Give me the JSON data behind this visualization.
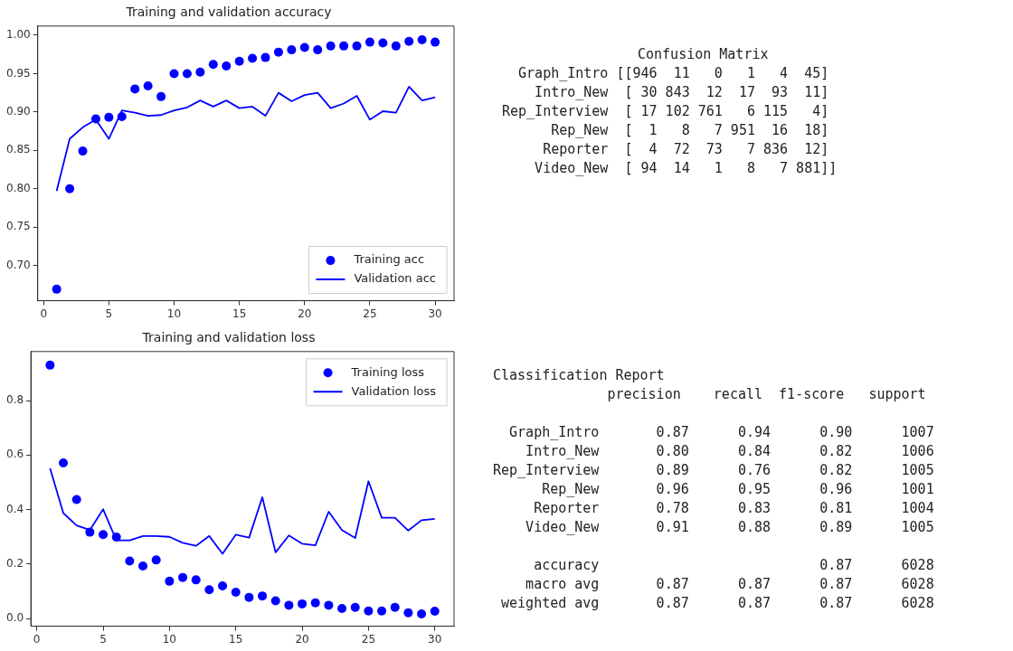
{
  "chart_data": [
    {
      "type": "scatter",
      "title": "Training and validation accuracy",
      "x": [
        1,
        2,
        3,
        4,
        5,
        6,
        7,
        8,
        9,
        10,
        11,
        12,
        13,
        14,
        15,
        16,
        17,
        18,
        19,
        20,
        21,
        22,
        23,
        24,
        25,
        26,
        27,
        28,
        29,
        30
      ],
      "xlim": [
        -0.45,
        31.45
      ],
      "xticks": [
        0,
        5,
        10,
        15,
        20,
        25,
        30
      ],
      "ylim": [
        0.654,
        1.012
      ],
      "yticks": [
        {
          "value": 0.7,
          "label": "0.70"
        },
        {
          "value": 0.75,
          "label": "0.75"
        },
        {
          "value": 0.8,
          "label": "0.80"
        },
        {
          "value": 0.85,
          "label": "0.85"
        },
        {
          "value": 0.9,
          "label": "0.90"
        },
        {
          "value": 0.95,
          "label": "0.95"
        },
        {
          "value": 1.0,
          "label": "1.00"
        }
      ],
      "grid": false,
      "legend": "bottom right",
      "series": [
        {
          "name": "Training acc",
          "type": "scatter",
          "marker": "circle",
          "color": "#0000ff",
          "values": [
            0.669,
            0.8,
            0.849,
            0.891,
            0.893,
            0.894,
            0.93,
            0.934,
            0.92,
            0.95,
            0.95,
            0.952,
            0.962,
            0.96,
            0.966,
            0.97,
            0.971,
            0.978,
            0.981,
            0.984,
            0.981,
            0.986,
            0.986,
            0.986,
            0.991,
            0.99,
            0.986,
            0.992,
            0.994,
            0.991
          ]
        },
        {
          "name": "Validation acc",
          "type": "line",
          "marker": "none",
          "color": "#0000ff",
          "values": [
            0.797,
            0.865,
            0.88,
            0.89,
            0.865,
            0.902,
            0.899,
            0.895,
            0.896,
            0.902,
            0.906,
            0.915,
            0.907,
            0.915,
            0.905,
            0.907,
            0.895,
            0.925,
            0.914,
            0.922,
            0.925,
            0.905,
            0.911,
            0.921,
            0.89,
            0.901,
            0.899,
            0.933,
            0.915,
            0.919
          ]
        }
      ]
    },
    {
      "type": "other",
      "title": "Confusion Matrix",
      "annotations": [
        "  Graph_Intro [[946  11   0   1   4  45]",
        "    Intro_New  [ 30 843  12  17  93  11]",
        "Rep_Interview  [ 17 102 761   6 115   4]",
        "      Rep_New  [  1   8   7 951  16  18]",
        "     Reporter  [  4  72  73   7 836  12]",
        "    Video_New  [ 94  14   1   8   7 881]]"
      ]
    },
    {
      "type": "scatter",
      "title": "Training and validation loss",
      "x": [
        1,
        2,
        3,
        4,
        5,
        6,
        7,
        8,
        9,
        10,
        11,
        12,
        13,
        14,
        15,
        16,
        17,
        18,
        19,
        20,
        21,
        22,
        23,
        24,
        25,
        26,
        27,
        28,
        29,
        30
      ],
      "xlim": [
        -0.45,
        31.45
      ],
      "xticks": [
        0,
        5,
        10,
        15,
        20,
        25,
        30
      ],
      "ylim": [
        -0.028,
        0.98
      ],
      "yticks": [
        {
          "value": 0,
          "label": "0.0"
        },
        {
          "value": 0.2,
          "label": "0.2"
        },
        {
          "value": 0.4,
          "label": "0.4"
        },
        {
          "value": 0.6,
          "label": "0.6"
        },
        {
          "value": 0.8,
          "label": "0.8"
        }
      ],
      "grid": false,
      "legend": "top right",
      "series": [
        {
          "name": "Training loss",
          "type": "scatter",
          "marker": "circle",
          "color": "#0000ff",
          "values": [
            0.93,
            0.571,
            0.437,
            0.317,
            0.308,
            0.299,
            0.211,
            0.193,
            0.215,
            0.137,
            0.151,
            0.142,
            0.106,
            0.12,
            0.097,
            0.078,
            0.083,
            0.065,
            0.049,
            0.054,
            0.058,
            0.049,
            0.037,
            0.041,
            0.028,
            0.028,
            0.041,
            0.021,
            0.017,
            0.027
          ]
        },
        {
          "name": "Validation loss",
          "type": "line",
          "marker": "none",
          "color": "#0000ff",
          "values": [
            0.551,
            0.387,
            0.342,
            0.325,
            0.401,
            0.287,
            0.287,
            0.303,
            0.303,
            0.3,
            0.278,
            0.267,
            0.303,
            0.238,
            0.308,
            0.297,
            0.445,
            0.243,
            0.305,
            0.275,
            0.269,
            0.392,
            0.325,
            0.296,
            0.504,
            0.37,
            0.37,
            0.323,
            0.361,
            0.366
          ]
        }
      ]
    },
    {
      "type": "other",
      "title": "Classification Report",
      "annotations": [
        "              precision    recall  f1-score   support",
        "  Graph_Intro       0.87      0.94      0.90      1007",
        "    Intro_New       0.80      0.84      0.82      1006",
        "Rep_Interview       0.89      0.76      0.82      1005",
        "      Rep_New       0.96      0.95      0.96      1001",
        "     Reporter       0.78      0.83      0.81      1004",
        "    Video_New       0.91      0.88      0.89      1005",
        "     accuracy                           0.87      6028",
        "    macro avg       0.87      0.87      0.87      6028",
        " weighted avg       0.87      0.87      0.87      6028"
      ]
    }
  ]
}
